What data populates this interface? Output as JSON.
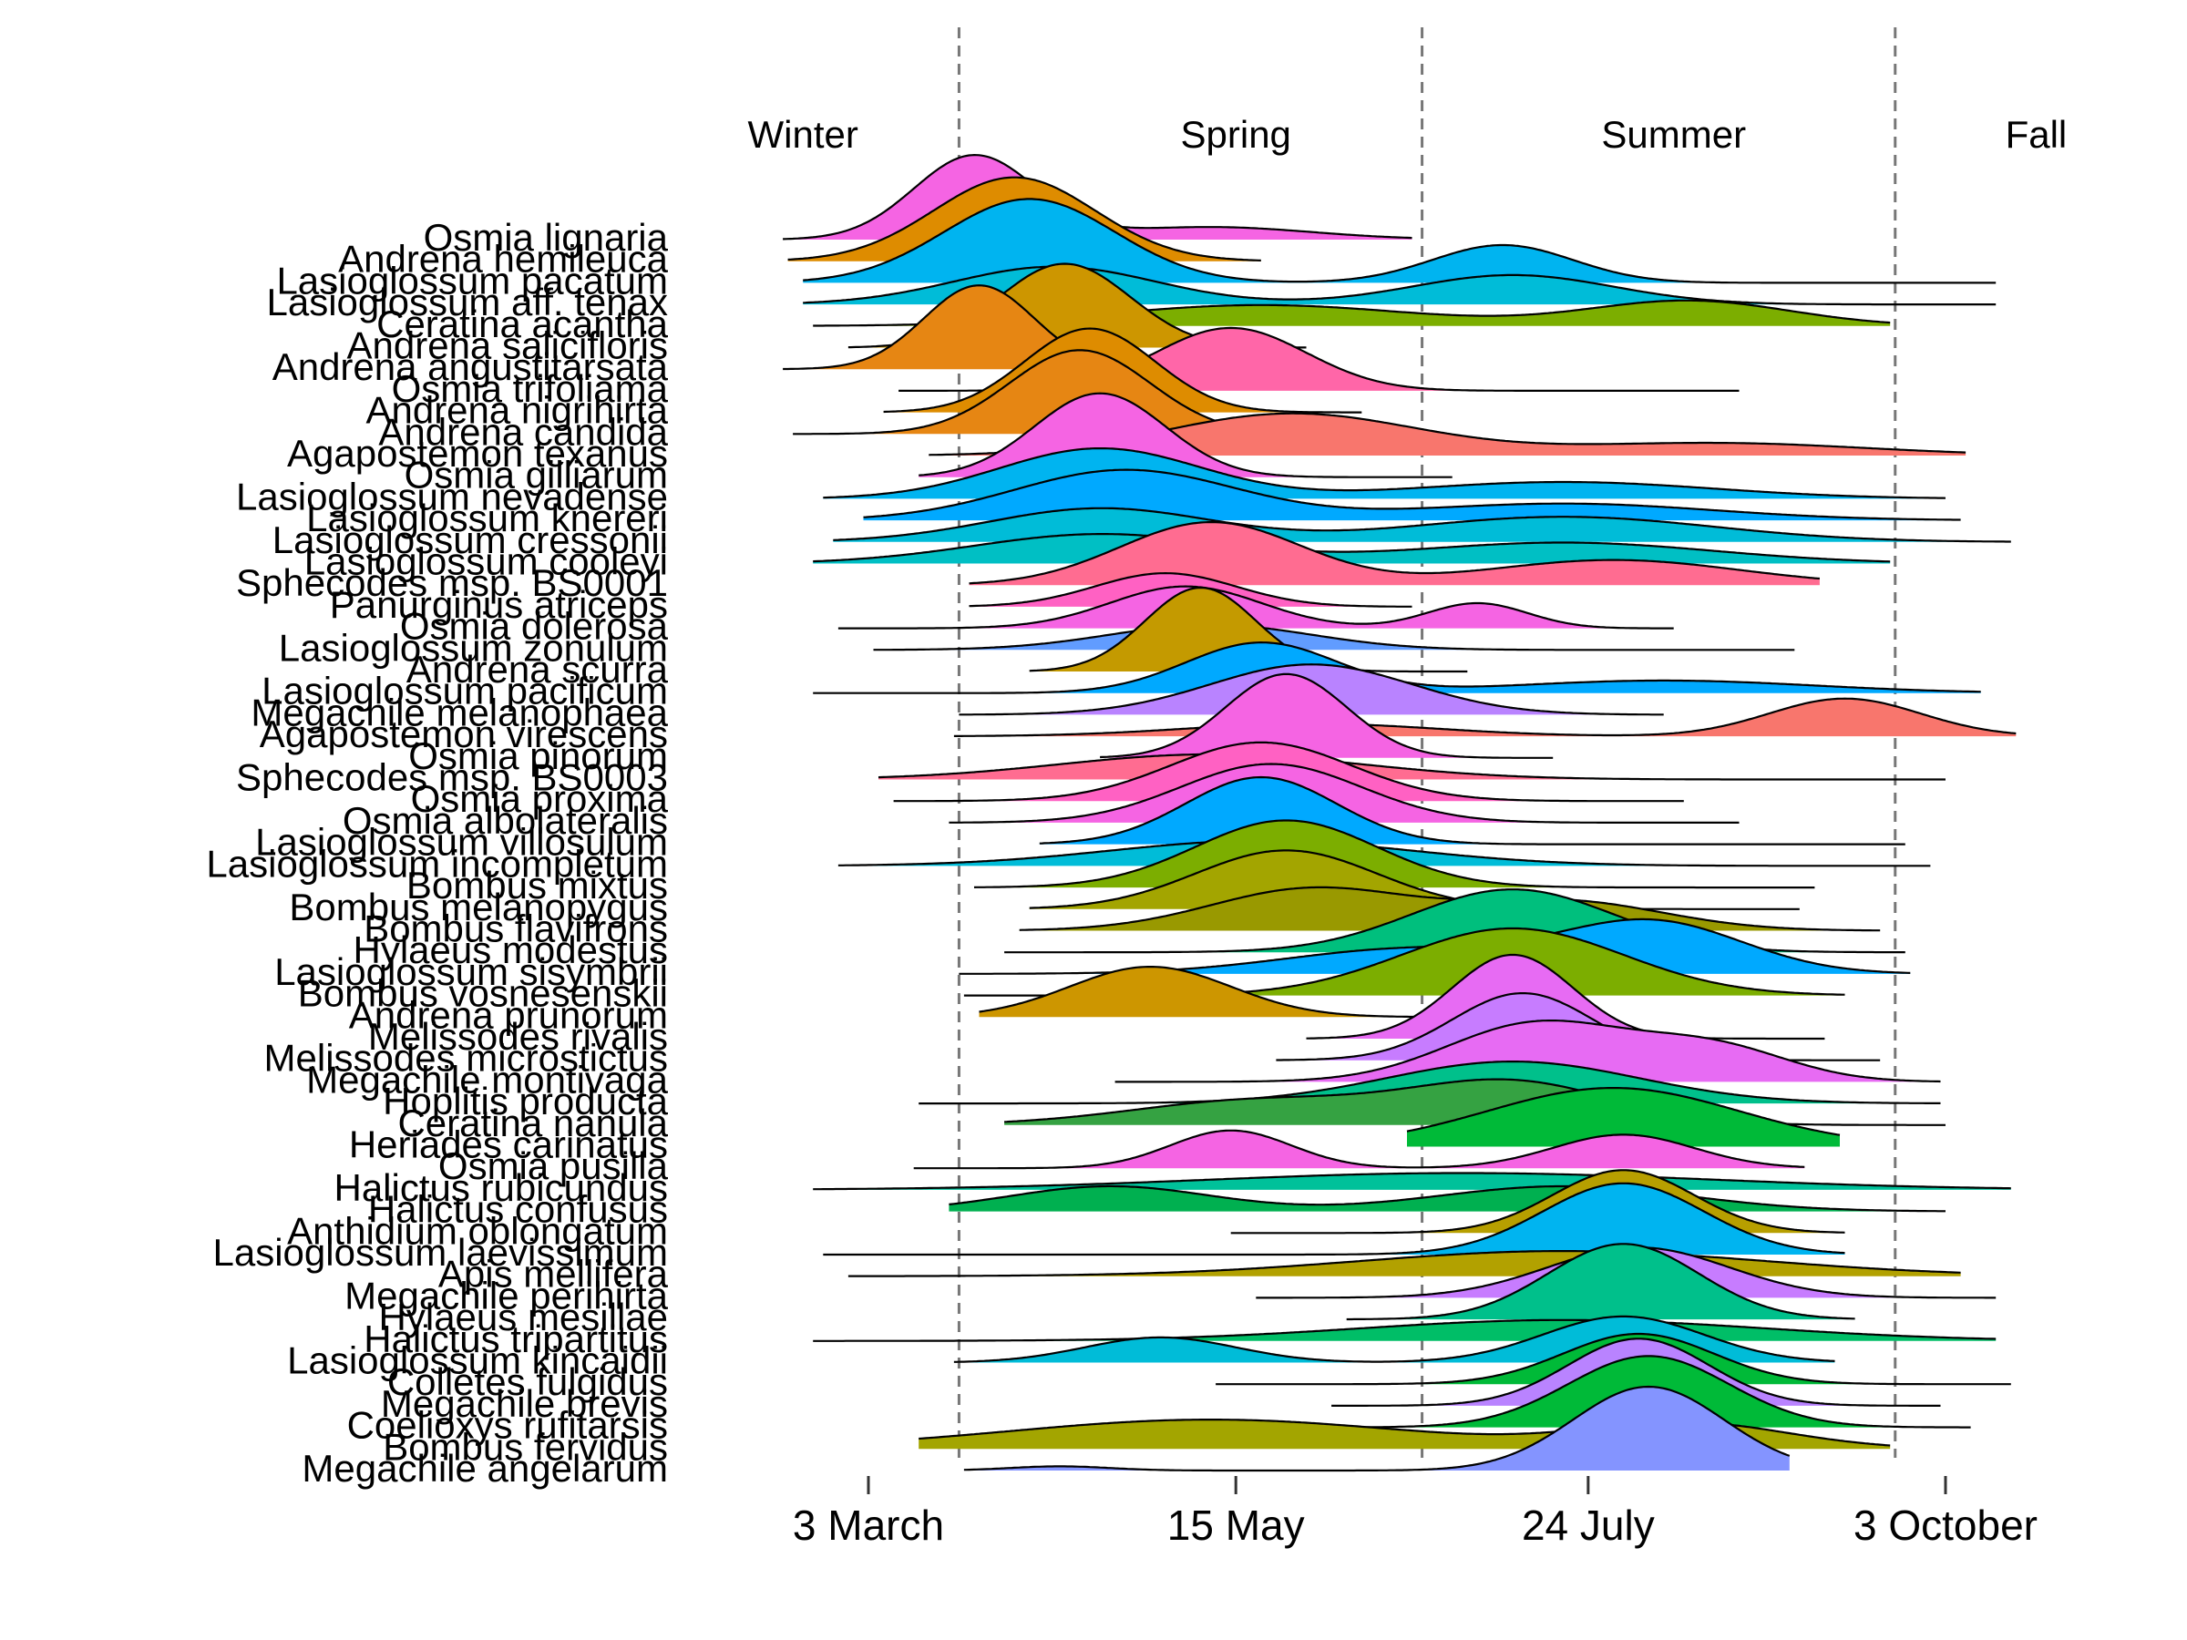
{
  "chart_data": {
    "type": "ridgeline",
    "x_axis": {
      "ticks": [
        {
          "label": "3 March",
          "doy": 62
        },
        {
          "label": "15 May",
          "doy": 135
        },
        {
          "label": "24 July",
          "doy": 205
        },
        {
          "label": "3 October",
          "doy": 276
        }
      ],
      "xlim_doy": [
        31,
        290
      ]
    },
    "seasons": {
      "labels": [
        {
          "label": "Winter",
          "doy": 49
        },
        {
          "label": "Spring",
          "doy": 135
        },
        {
          "label": "Summer",
          "doy": 222
        },
        {
          "label": "Fall",
          "doy": 294
        }
      ],
      "boundaries_doy": [
        80,
        172,
        266
      ]
    },
    "species": [
      {
        "name": "Osmia lignaria",
        "color": "#F564E3",
        "range": [
          45,
          170
        ],
        "peaks": [
          {
            "m": 83,
            "s": 12,
            "a": 1.0
          },
          {
            "m": 130,
            "s": 20,
            "a": 0.15
          }
        ]
      },
      {
        "name": "Andrena hemileuca",
        "color": "#DE8C00",
        "range": [
          46,
          140
        ],
        "peaks": [
          {
            "m": 91,
            "s": 16,
            "a": 1.0
          }
        ]
      },
      {
        "name": "Lasioglossum pacatum",
        "color": "#00B4F0",
        "range": [
          49,
          286
        ],
        "peaks": [
          {
            "m": 94,
            "s": 17,
            "a": 1.0
          },
          {
            "m": 188,
            "s": 14,
            "a": 0.45
          }
        ]
      },
      {
        "name": "Lasioglossum aff. tenax",
        "color": "#00BCD8",
        "range": [
          49,
          286
        ],
        "peaks": [
          {
            "m": 99,
            "s": 20,
            "a": 0.45
          },
          {
            "m": 190,
            "s": 20,
            "a": 0.35
          }
        ]
      },
      {
        "name": "Ceratina acantha",
        "color": "#7CAE00",
        "range": [
          51,
          265
        ],
        "peaks": [
          {
            "m": 140,
            "s": 30,
            "a": 0.25
          },
          {
            "m": 225,
            "s": 20,
            "a": 0.3
          }
        ]
      },
      {
        "name": "Andrena salicifloris",
        "color": "#CD9600",
        "range": [
          58,
          149
        ],
        "peaks": [
          {
            "m": 101,
            "s": 13,
            "a": 1.0
          }
        ]
      },
      {
        "name": "Andrena angustitarsata",
        "color": "#E68613",
        "range": [
          45,
          129
        ],
        "peaks": [
          {
            "m": 84,
            "s": 11,
            "a": 1.0
          }
        ]
      },
      {
        "name": "Osmia trifoliama",
        "color": "#FF66A8",
        "range": [
          68,
          235
        ],
        "peaks": [
          {
            "m": 134,
            "s": 15,
            "a": 0.75
          }
        ]
      },
      {
        "name": "Andrena nigrihirta",
        "color": "#DE8C00",
        "range": [
          65,
          160
        ],
        "peaks": [
          {
            "m": 106,
            "s": 13,
            "a": 1.0
          }
        ]
      },
      {
        "name": "Andrena candida",
        "color": "#E68613",
        "range": [
          47,
          143
        ],
        "peaks": [
          {
            "m": 104,
            "s": 14,
            "a": 1.0
          }
        ]
      },
      {
        "name": "Agapostemon texanus",
        "color": "#F8766D",
        "range": [
          74,
          280
        ],
        "peaks": [
          {
            "m": 146,
            "s": 25,
            "a": 0.5
          },
          {
            "m": 230,
            "s": 30,
            "a": 0.15
          }
        ]
      },
      {
        "name": "Osmia gilliarum",
        "color": "#F564E3",
        "range": [
          72,
          178
        ],
        "peaks": [
          {
            "m": 108,
            "s": 13,
            "a": 1.0
          }
        ]
      },
      {
        "name": "Lasioglossum nevadense",
        "color": "#00B4F0",
        "range": [
          53,
          276
        ],
        "peaks": [
          {
            "m": 108,
            "s": 20,
            "a": 0.6
          },
          {
            "m": 200,
            "s": 30,
            "a": 0.2
          }
        ]
      },
      {
        "name": "Lasioglossum knereri",
        "color": "#00A9FF",
        "range": [
          61,
          279
        ],
        "peaks": [
          {
            "m": 113,
            "s": 22,
            "a": 0.6
          },
          {
            "m": 200,
            "s": 30,
            "a": 0.2
          }
        ]
      },
      {
        "name": "Lasioglossum cressonii",
        "color": "#00BCD8",
        "range": [
          55,
          289
        ],
        "peaks": [
          {
            "m": 108,
            "s": 22,
            "a": 0.4
          },
          {
            "m": 200,
            "s": 30,
            "a": 0.3
          }
        ]
      },
      {
        "name": "Lasioglossum cooleyi",
        "color": "#00BFC4",
        "range": [
          51,
          265
        ],
        "peaks": [
          {
            "m": 108,
            "s": 25,
            "a": 0.35
          },
          {
            "m": 200,
            "s": 30,
            "a": 0.25
          }
        ]
      },
      {
        "name": "Sphecodes msp. BS0001",
        "color": "#FF6C91",
        "range": [
          82,
          251
        ],
        "peaks": [
          {
            "m": 130,
            "s": 18,
            "a": 0.75
          },
          {
            "m": 210,
            "s": 25,
            "a": 0.3
          }
        ]
      },
      {
        "name": "Panurginus atriceps",
        "color": "#FF61C3",
        "range": [
          82,
          170
        ],
        "peaks": [
          {
            "m": 121,
            "s": 14,
            "a": 0.4
          }
        ]
      },
      {
        "name": "Osmia dolerosa",
        "color": "#F564E3",
        "range": [
          56,
          222
        ],
        "peaks": [
          {
            "m": 125,
            "s": 15,
            "a": 0.5
          },
          {
            "m": 183,
            "s": 10,
            "a": 0.3
          }
        ]
      },
      {
        "name": "Lasioglossum zonulum",
        "color": "#619CFF",
        "range": [
          63,
          246
        ],
        "peaks": [
          {
            "m": 130,
            "s": 20,
            "a": 0.3
          }
        ]
      },
      {
        "name": "Andrena scurra",
        "color": "#C49A00",
        "range": [
          94,
          181
        ],
        "peaks": [
          {
            "m": 128,
            "s": 11,
            "a": 1.0
          }
        ]
      },
      {
        "name": "Lasioglossum pacificum",
        "color": "#00A9FF",
        "range": [
          51,
          283
        ],
        "peaks": [
          {
            "m": 140,
            "s": 15,
            "a": 0.6
          },
          {
            "m": 220,
            "s": 30,
            "a": 0.15
          }
        ]
      },
      {
        "name": "Megachile melanophaea",
        "color": "#B983FF",
        "range": [
          80,
          220
        ],
        "peaks": [
          {
            "m": 150,
            "s": 20,
            "a": 0.6
          }
        ]
      },
      {
        "name": "Agapostemon virescens",
        "color": "#F8766D",
        "range": [
          79,
          290
        ],
        "peaks": [
          {
            "m": 150,
            "s": 25,
            "a": 0.15
          },
          {
            "m": 256,
            "s": 15,
            "a": 0.45
          }
        ]
      },
      {
        "name": "Osmia pinorum",
        "color": "#F564E3",
        "range": [
          108,
          198
        ],
        "peaks": [
          {
            "m": 145,
            "s": 12,
            "a": 1.0
          }
        ]
      },
      {
        "name": "Sphecodes msp. BS0003",
        "color": "#FF6C91",
        "range": [
          64,
          276
        ],
        "peaks": [
          {
            "m": 130,
            "s": 30,
            "a": 0.3
          }
        ]
      },
      {
        "name": "Osmia proxima",
        "color": "#FF61C3",
        "range": [
          67,
          224
        ],
        "peaks": [
          {
            "m": 140,
            "s": 18,
            "a": 0.7
          }
        ]
      },
      {
        "name": "Osmia albolateralis",
        "color": "#F564E3",
        "range": [
          78,
          235
        ],
        "peaks": [
          {
            "m": 142,
            "s": 18,
            "a": 0.7
          }
        ]
      },
      {
        "name": "Lasioglossum villosulum",
        "color": "#00A9FF",
        "range": [
          96,
          268
        ],
        "peaks": [
          {
            "m": 140,
            "s": 15,
            "a": 0.8
          }
        ]
      },
      {
        "name": "Lasioglossum incompletum",
        "color": "#00BCD8",
        "range": [
          56,
          273
        ],
        "peaks": [
          {
            "m": 140,
            "s": 30,
            "a": 0.3
          }
        ]
      },
      {
        "name": "Bombus mixtus",
        "color": "#7CAE00",
        "range": [
          83,
          250
        ],
        "peaks": [
          {
            "m": 145,
            "s": 18,
            "a": 0.8
          }
        ]
      },
      {
        "name": "Bombus melanopygus",
        "color": "#A3A500",
        "range": [
          94,
          247
        ],
        "peaks": [
          {
            "m": 145,
            "s": 18,
            "a": 0.7
          }
        ]
      },
      {
        "name": "Bombus flavifrons",
        "color": "#999900",
        "range": [
          92,
          263
        ],
        "peaks": [
          {
            "m": 150,
            "s": 20,
            "a": 0.5
          },
          {
            "m": 200,
            "s": 20,
            "a": 0.35
          }
        ]
      },
      {
        "name": "Hylaeus modestus",
        "color": "#00BF7D",
        "range": [
          89,
          268
        ],
        "peaks": [
          {
            "m": 190,
            "s": 20,
            "a": 0.75
          }
        ]
      },
      {
        "name": "Lasioglossum sisymbrii",
        "color": "#00A9FF",
        "range": [
          80,
          269
        ],
        "peaks": [
          {
            "m": 170,
            "s": 25,
            "a": 0.3
          },
          {
            "m": 218,
            "s": 18,
            "a": 0.6
          }
        ]
      },
      {
        "name": "Bombus vosnesenskii",
        "color": "#7CAE00",
        "range": [
          81,
          256
        ],
        "peaks": [
          {
            "m": 190,
            "s": 22,
            "a": 0.8
          }
        ]
      },
      {
        "name": "Andrena prunorum",
        "color": "#CD9600",
        "range": [
          84,
          181
        ],
        "peaks": [
          {
            "m": 118,
            "s": 16,
            "a": 0.6
          }
        ]
      },
      {
        "name": "Melissodes rivalis",
        "color": "#E76BF3",
        "range": [
          149,
          252
        ],
        "peaks": [
          {
            "m": 190,
            "s": 12,
            "a": 1.0
          }
        ]
      },
      {
        "name": "Melissodes microstictus",
        "color": "#C77CFF",
        "range": [
          143,
          263
        ],
        "peaks": [
          {
            "m": 192,
            "s": 14,
            "a": 0.8
          }
        ]
      },
      {
        "name": "Megachile montivaga",
        "color": "#E76BF3",
        "range": [
          111,
          275
        ],
        "peaks": [
          {
            "m": 195,
            "s": 18,
            "a": 0.7
          },
          {
            "m": 230,
            "s": 15,
            "a": 0.4
          }
        ]
      },
      {
        "name": "Hoplitis producta",
        "color": "#00C08B",
        "range": [
          72,
          275
        ],
        "peaks": [
          {
            "m": 190,
            "s": 25,
            "a": 0.5
          }
        ]
      },
      {
        "name": "Ceratina nanula",
        "color": "#35A242",
        "range": [
          89,
          276
        ],
        "peaks": [
          {
            "m": 140,
            "s": 25,
            "a": 0.3
          },
          {
            "m": 190,
            "s": 20,
            "a": 0.5
          }
        ]
      },
      {
        "name": "Heriades carinatus",
        "color": "#00BA38",
        "range": [
          169,
          255
        ],
        "peaks": [
          {
            "m": 210,
            "s": 25,
            "a": 0.7
          }
        ]
      },
      {
        "name": "Osmia pusilla",
        "color": "#F564E3",
        "range": [
          71,
          248
        ],
        "peaks": [
          {
            "m": 134,
            "s": 12,
            "a": 0.45
          },
          {
            "m": 212,
            "s": 14,
            "a": 0.4
          }
        ]
      },
      {
        "name": "Halictus rubicundus",
        "color": "#00C19A",
        "range": [
          51,
          289
        ],
        "peaks": [
          {
            "m": 180,
            "s": 50,
            "a": 0.2
          }
        ]
      },
      {
        "name": "Halictus confusus",
        "color": "#00B050",
        "range": [
          78,
          276
        ],
        "peaks": [
          {
            "m": 110,
            "s": 20,
            "a": 0.3
          },
          {
            "m": 200,
            "s": 25,
            "a": 0.3
          }
        ]
      },
      {
        "name": "Anthidium oblongatum",
        "color": "#B79F00",
        "range": [
          134,
          256
        ],
        "peaks": [
          {
            "m": 212,
            "s": 14,
            "a": 0.75
          }
        ]
      },
      {
        "name": "Lasioglossum laevissimum",
        "color": "#00B4F0",
        "range": [
          53,
          256
        ],
        "peaks": [
          {
            "m": 212,
            "s": 16,
            "a": 0.85
          }
        ]
      },
      {
        "name": "Apis mellifera",
        "color": "#B2A100",
        "range": [
          58,
          279
        ],
        "peaks": [
          {
            "m": 200,
            "s": 40,
            "a": 0.3
          }
        ]
      },
      {
        "name": "Megachile perihirta",
        "color": "#C77CFF",
        "range": [
          139,
          286
        ],
        "peaks": [
          {
            "m": 215,
            "s": 18,
            "a": 0.6
          }
        ]
      },
      {
        "name": "Hylaeus mesillae",
        "color": "#00C08B",
        "range": [
          157,
          258
        ],
        "peaks": [
          {
            "m": 212,
            "s": 15,
            "a": 0.9
          }
        ]
      },
      {
        "name": "Halictus tripartitus",
        "color": "#00BE67",
        "range": [
          51,
          286
        ],
        "peaks": [
          {
            "m": 200,
            "s": 40,
            "a": 0.25
          }
        ]
      },
      {
        "name": "Lasioglossum kincaidii",
        "color": "#00BCD8",
        "range": [
          79,
          254
        ],
        "peaks": [
          {
            "m": 120,
            "s": 15,
            "a": 0.3
          },
          {
            "m": 212,
            "s": 16,
            "a": 0.55
          }
        ]
      },
      {
        "name": "Colletes fulgidus",
        "color": "#00BA38",
        "range": [
          131,
          289
        ],
        "peaks": [
          {
            "m": 215,
            "s": 15,
            "a": 0.6
          }
        ]
      },
      {
        "name": "Megachile brevis",
        "color": "#B983FF",
        "range": [
          154,
          275
        ],
        "peaks": [
          {
            "m": 215,
            "s": 14,
            "a": 0.8
          }
        ]
      },
      {
        "name": "Coelioxys rufitarsis",
        "color": "#00BA38",
        "range": [
          154,
          281
        ],
        "peaks": [
          {
            "m": 217,
            "s": 16,
            "a": 0.85
          }
        ]
      },
      {
        "name": "Bombus fervidus",
        "color": "#A3A500",
        "range": [
          72,
          265
        ],
        "peaks": [
          {
            "m": 130,
            "s": 40,
            "a": 0.35
          },
          {
            "m": 225,
            "s": 20,
            "a": 0.3
          }
        ]
      },
      {
        "name": "Megachile angelarum",
        "color": "#8494FF",
        "range": [
          81,
          245
        ],
        "peaks": [
          {
            "m": 100,
            "s": 10,
            "a": 0.05
          },
          {
            "m": 217,
            "s": 15,
            "a": 1.0
          }
        ]
      }
    ]
  }
}
